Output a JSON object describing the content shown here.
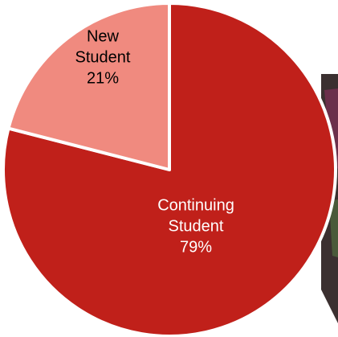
{
  "chart_data": {
    "type": "pie",
    "title": "",
    "slices": [
      {
        "name_lines": [
          "Continuing",
          "Student"
        ],
        "percent_label": "79%",
        "value": 79,
        "color": "#c0201a",
        "label_color": "#ffffff"
      },
      {
        "name_lines": [
          "New",
          "Student"
        ],
        "percent_label": "21%",
        "value": 21,
        "color": "#f08a7f",
        "label_color": "#000000"
      }
    ],
    "start": "clockwise from top",
    "slice_border_color": "#ffffff",
    "legend": "none"
  },
  "background_photo": {
    "colors": [
      "#3b3030",
      "#6b2f4b",
      "#4a5a3a"
    ]
  }
}
